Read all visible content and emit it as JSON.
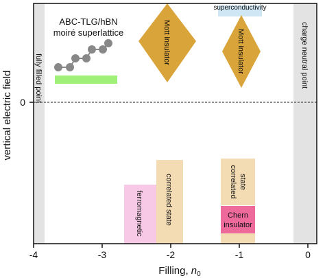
{
  "axes": {
    "xlabel": "Filling, ",
    "xlabel_var": "n",
    "xlabel_sub": "0",
    "ylabel": "vertical electric field",
    "x_ticks": [
      "-4",
      "-3",
      "-2",
      "-1",
      "0"
    ],
    "y_tick_zero": "0"
  },
  "inset": {
    "title_line1": "ABC-TLG/hBN",
    "title_line2": "moiré superlattice"
  },
  "boundaries": {
    "left": "fully filled point",
    "right": "charge neutral point"
  },
  "phases": {
    "mott_left": "Mott insulator",
    "mott_right": "Mott insulator",
    "superconductivity": "superconductivity",
    "ferromagnetic": "ferromagnetic",
    "correlated_left": "correlated state",
    "correlated_right_line1": "correlated",
    "correlated_right_line2": "state",
    "chern_line1": "Chern",
    "chern_line2": "insulator"
  },
  "colors": {
    "mott": "#d9a43a",
    "correlated": "#f3dcb4",
    "ferromagnetic": "#f7c9e6",
    "chern": "#ee6a9a",
    "superconductivity": "#cfe6f5",
    "boundary_band": "#e3e3e3",
    "inset_bar": "#9ef078",
    "lattice": "#888888"
  }
}
